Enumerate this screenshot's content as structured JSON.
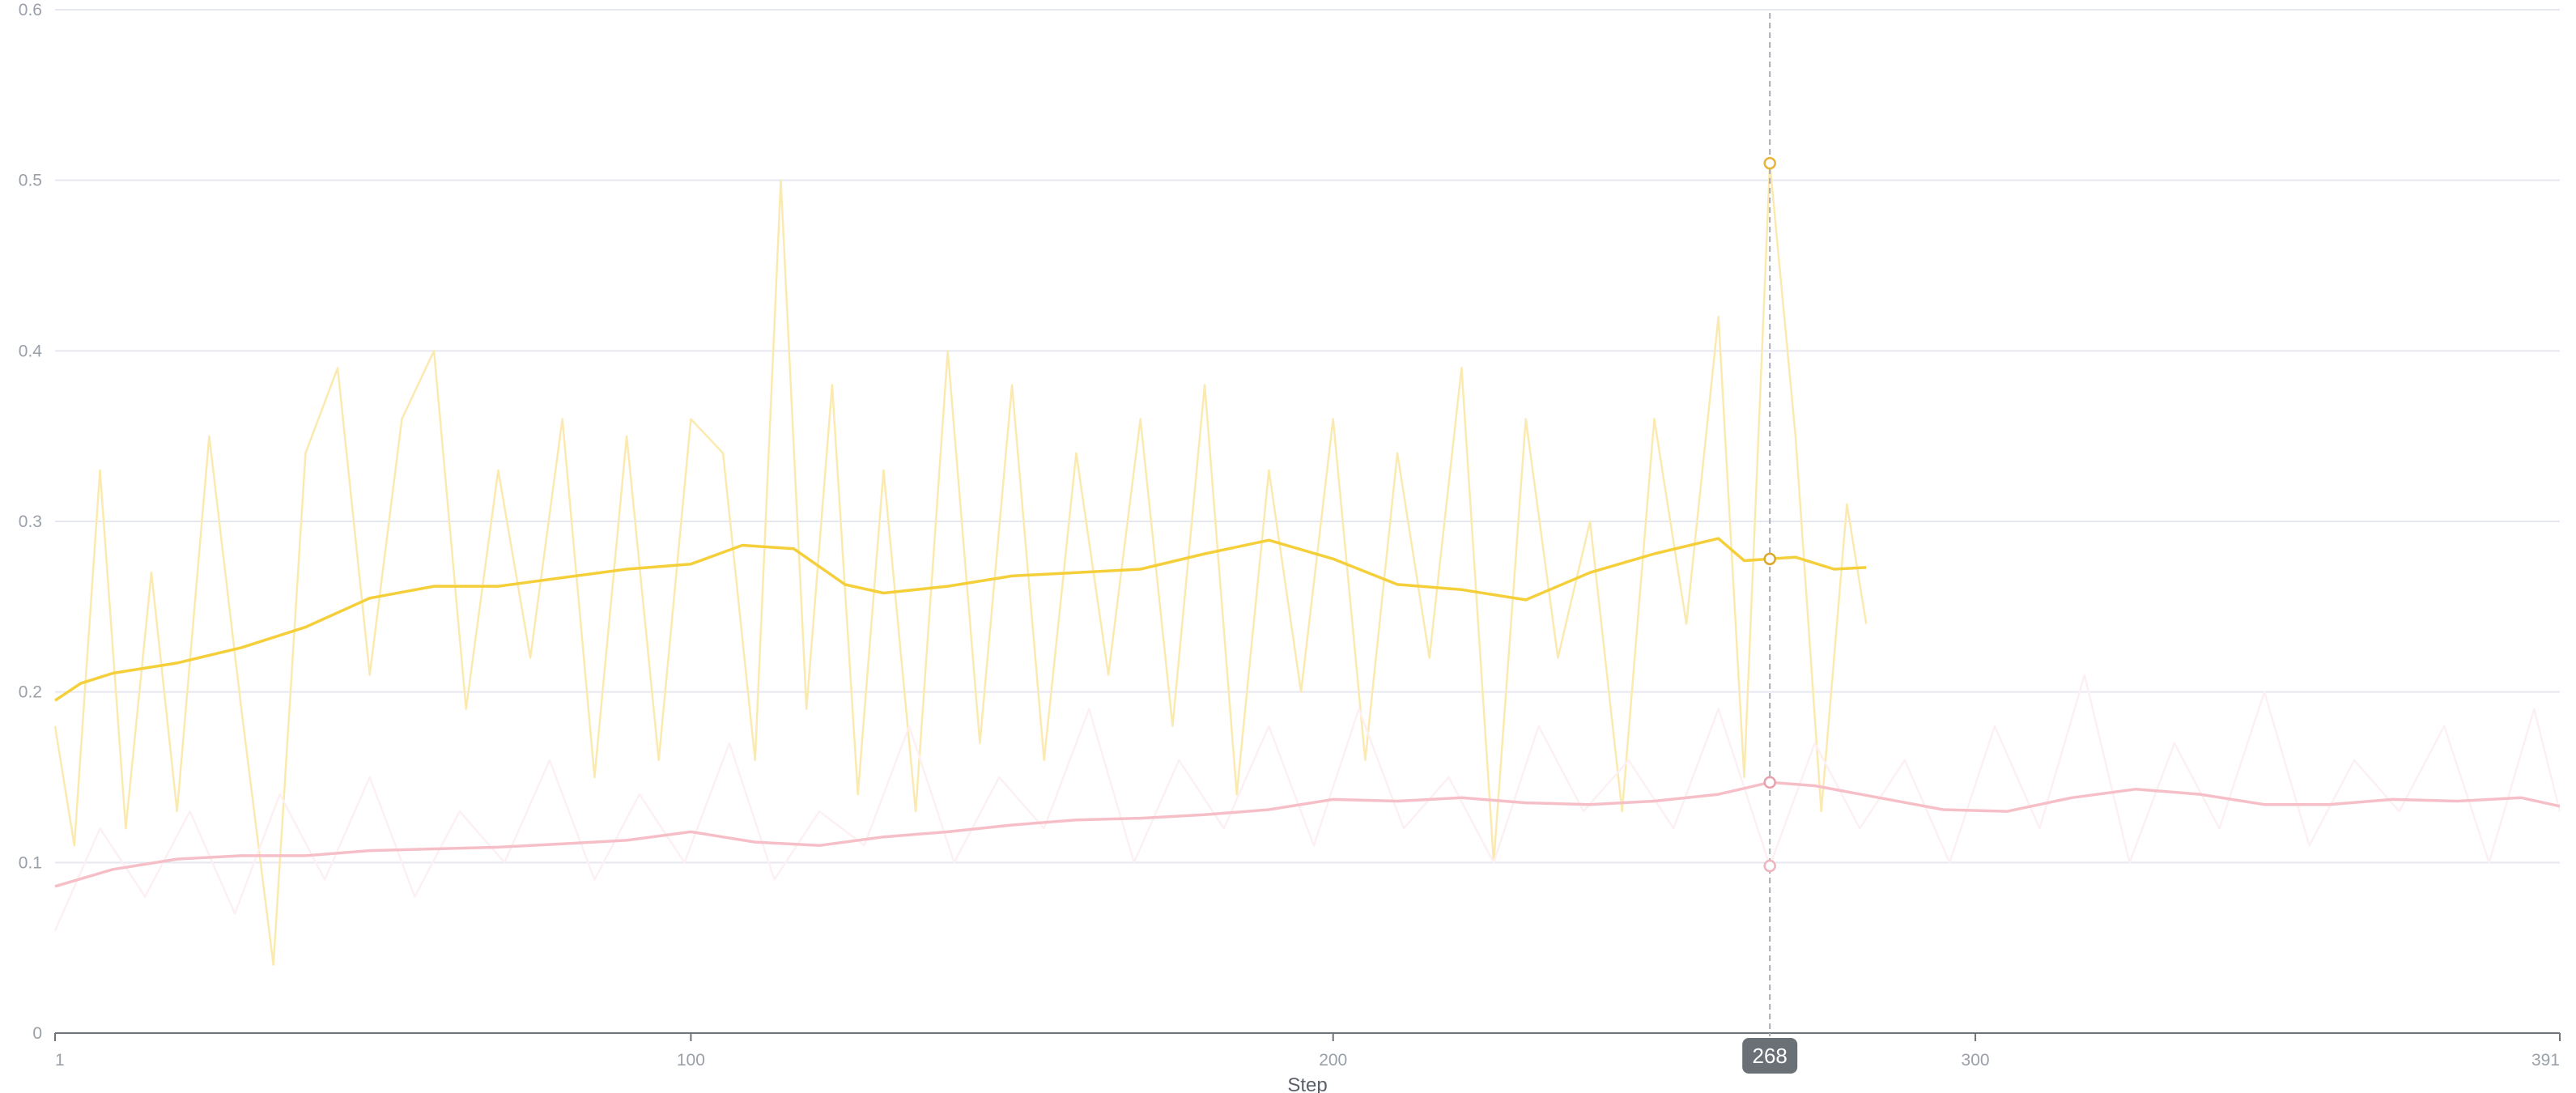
{
  "chart_data": {
    "type": "line",
    "xlabel": "Step",
    "ylabel": "",
    "xlim": [
      1,
      391
    ],
    "ylim": [
      0,
      0.6
    ],
    "x_ticks": [
      1,
      100,
      200,
      300,
      391
    ],
    "y_ticks": [
      0,
      0.1,
      0.2,
      0.3,
      0.4,
      0.5,
      0.6
    ],
    "y_tick_labels": [
      "0",
      "0.1",
      "0.2",
      "0.3",
      "0.4",
      "0.5",
      "0.6"
    ],
    "grid": true,
    "legend": "none",
    "hover": {
      "step": 268,
      "step_label": "268",
      "yellow_raw": 0.51,
      "yellow_smoothed": 0.278,
      "pink_raw": 0.098,
      "pink_smoothed": 0.147
    },
    "series": [
      {
        "key": "yellow",
        "color": "#f5cf3a",
        "raw_color": "#fbeab0",
        "raw_sample_steps": [
          1,
          4,
          8,
          12,
          16,
          20,
          25,
          30,
          35,
          40,
          45,
          50,
          55,
          60,
          65,
          70,
          75,
          80,
          85,
          90,
          95,
          100,
          105,
          110,
          114,
          118,
          122,
          126,
          130,
          135,
          140,
          145,
          150,
          155,
          160,
          165,
          170,
          175,
          180,
          185,
          190,
          195,
          200,
          205,
          210,
          215,
          220,
          225,
          230,
          235,
          240,
          245,
          250,
          255,
          260,
          264,
          268,
          272,
          276,
          280,
          283
        ],
        "raw_values": [
          0.18,
          0.11,
          0.33,
          0.12,
          0.27,
          0.13,
          0.35,
          0.19,
          0.04,
          0.34,
          0.39,
          0.21,
          0.36,
          0.4,
          0.19,
          0.33,
          0.22,
          0.36,
          0.15,
          0.35,
          0.16,
          0.36,
          0.34,
          0.16,
          0.5,
          0.19,
          0.38,
          0.14,
          0.33,
          0.13,
          0.4,
          0.17,
          0.38,
          0.16,
          0.34,
          0.21,
          0.36,
          0.18,
          0.38,
          0.14,
          0.33,
          0.2,
          0.36,
          0.16,
          0.34,
          0.22,
          0.39,
          0.1,
          0.36,
          0.22,
          0.3,
          0.13,
          0.36,
          0.24,
          0.42,
          0.15,
          0.51,
          0.35,
          0.13,
          0.31,
          0.24
        ],
        "smoothed_sample_steps": [
          1,
          5,
          10,
          20,
          30,
          40,
          50,
          60,
          70,
          80,
          90,
          100,
          108,
          116,
          124,
          130,
          140,
          150,
          160,
          170,
          180,
          190,
          200,
          210,
          220,
          230,
          240,
          250,
          260,
          264,
          268,
          272,
          278,
          283
        ],
        "smoothed_values": [
          0.195,
          0.205,
          0.211,
          0.217,
          0.226,
          0.238,
          0.255,
          0.262,
          0.262,
          0.267,
          0.272,
          0.275,
          0.286,
          0.284,
          0.263,
          0.258,
          0.262,
          0.268,
          0.27,
          0.272,
          0.281,
          0.289,
          0.278,
          0.263,
          0.26,
          0.254,
          0.27,
          0.281,
          0.29,
          0.277,
          0.278,
          0.279,
          0.272,
          0.273
        ]
      },
      {
        "key": "pink",
        "color": "#f6bfc8",
        "raw_color": "#fdf0f2",
        "raw_sample_steps": [
          1,
          8,
          15,
          22,
          29,
          36,
          43,
          50,
          57,
          64,
          71,
          78,
          85,
          92,
          99,
          106,
          113,
          120,
          127,
          134,
          141,
          148,
          155,
          162,
          169,
          176,
          183,
          190,
          197,
          204,
          211,
          218,
          225,
          232,
          239,
          246,
          253,
          260,
          268,
          275,
          282,
          289,
          296,
          303,
          310,
          317,
          324,
          331,
          338,
          345,
          352,
          359,
          366,
          373,
          380,
          387,
          391
        ],
        "raw_values": [
          0.06,
          0.12,
          0.08,
          0.13,
          0.07,
          0.14,
          0.09,
          0.15,
          0.08,
          0.13,
          0.1,
          0.16,
          0.09,
          0.14,
          0.1,
          0.17,
          0.09,
          0.13,
          0.11,
          0.18,
          0.1,
          0.15,
          0.12,
          0.19,
          0.1,
          0.16,
          0.12,
          0.18,
          0.11,
          0.19,
          0.12,
          0.15,
          0.1,
          0.18,
          0.13,
          0.16,
          0.12,
          0.19,
          0.098,
          0.17,
          0.12,
          0.16,
          0.1,
          0.18,
          0.12,
          0.21,
          0.1,
          0.17,
          0.12,
          0.2,
          0.11,
          0.16,
          0.13,
          0.18,
          0.1,
          0.19,
          0.13
        ],
        "smoothed_sample_steps": [
          1,
          10,
          20,
          30,
          40,
          50,
          60,
          70,
          80,
          90,
          100,
          110,
          120,
          130,
          140,
          150,
          160,
          170,
          180,
          190,
          200,
          210,
          220,
          230,
          240,
          250,
          260,
          268,
          275,
          285,
          295,
          305,
          315,
          325,
          335,
          345,
          355,
          365,
          375,
          385,
          391
        ],
        "smoothed_values": [
          0.086,
          0.096,
          0.102,
          0.104,
          0.104,
          0.107,
          0.108,
          0.109,
          0.111,
          0.113,
          0.118,
          0.112,
          0.11,
          0.115,
          0.118,
          0.122,
          0.125,
          0.126,
          0.128,
          0.131,
          0.137,
          0.136,
          0.138,
          0.135,
          0.134,
          0.136,
          0.14,
          0.147,
          0.145,
          0.138,
          0.131,
          0.13,
          0.138,
          0.143,
          0.14,
          0.134,
          0.134,
          0.137,
          0.136,
          0.138,
          0.133
        ]
      }
    ]
  }
}
